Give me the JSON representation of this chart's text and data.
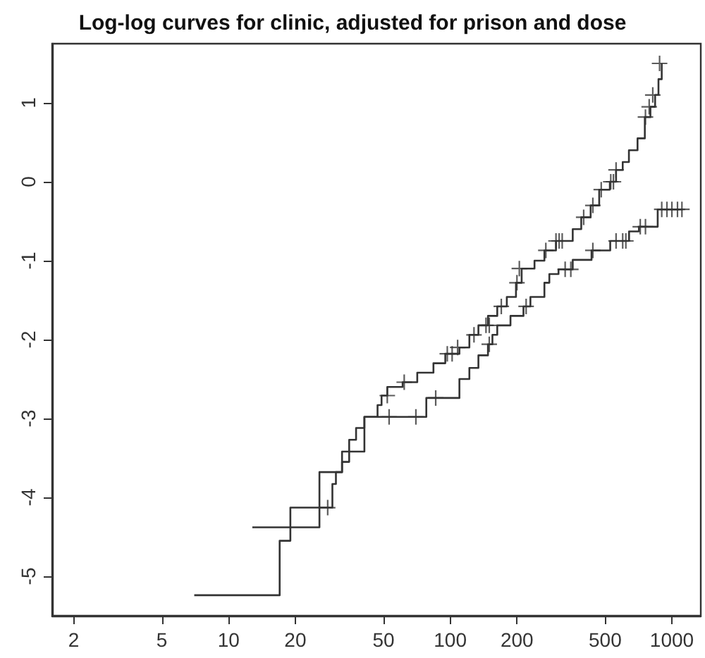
{
  "chart_data": {
    "type": "step",
    "title": "Log-log curves for clinic, adjusted for prison and dose",
    "log": "x",
    "xlim": [
      1.6,
      1350
    ],
    "xticks": [
      2,
      5,
      10,
      20,
      50,
      100,
      200,
      500,
      1000
    ],
    "ylim": [
      -5.5,
      1.75
    ],
    "yticks": [
      -5,
      -4,
      -3,
      -2,
      -1,
      0,
      1
    ],
    "series": [
      {
        "color": "#333333",
        "marker": "none",
        "x": [
          7,
          17,
          19,
          29.4,
          30.5,
          32.5,
          35,
          37.6,
          41,
          78,
          110,
          122,
          134,
          148,
          155,
          163,
          187,
          214,
          230,
          266,
          280,
          308,
          357,
          434,
          527,
          641,
          710,
          863,
          1120
        ],
        "values": [
          -5.24,
          -4.55,
          -4.13,
          -3.83,
          -3.68,
          -3.55,
          -3.27,
          -3.12,
          -2.98,
          -2.74,
          -2.5,
          -2.36,
          -2.2,
          -2.06,
          -1.94,
          -1.82,
          -1.7,
          -1.58,
          -1.46,
          -1.28,
          -1.17,
          -1.11,
          -0.99,
          -0.87,
          -0.75,
          -0.63,
          -0.57,
          -0.35,
          -0.35
        ]
      },
      {
        "color": "#333333",
        "marker": "none",
        "x": [
          12.8,
          25.7,
          32.5,
          41,
          47,
          49,
          52,
          61,
          71,
          84,
          95,
          110,
          122,
          134,
          148,
          163,
          180,
          198,
          210,
          240,
          266,
          300,
          357,
          390,
          430,
          470,
          525,
          560,
          600,
          640,
          700,
          755,
          800,
          840,
          870,
          900
        ],
        "values": [
          -4.38,
          -3.68,
          -3.42,
          -2.98,
          -2.83,
          -2.71,
          -2.6,
          -2.54,
          -2.42,
          -2.3,
          -2.18,
          -2.1,
          -1.94,
          -1.82,
          -1.7,
          -1.58,
          -1.46,
          -1.28,
          -1.1,
          -1.0,
          -0.87,
          -0.75,
          -0.6,
          -0.45,
          -0.3,
          -0.1,
          0.0,
          0.15,
          0.25,
          0.4,
          0.55,
          0.82,
          0.95,
          1.1,
          1.3,
          1.5
        ]
      },
      {
        "type": "scatter",
        "color": "#333333",
        "marker": "cross",
        "x": [
          28,
          53,
          70,
          86,
          150,
          220,
          330,
          350,
          440,
          560,
          600,
          620,
          720,
          760,
          900,
          950,
          1000,
          1060,
          1110
        ],
        "values": [
          -4.13,
          -2.98,
          -2.98,
          -2.74,
          -2.06,
          -1.58,
          -1.11,
          -1.11,
          -0.87,
          -0.75,
          -0.75,
          -0.75,
          -0.57,
          -0.57,
          -0.35,
          -0.35,
          -0.35,
          -0.35,
          -0.35
        ]
      },
      {
        "type": "scatter",
        "color": "#333333",
        "marker": "cross",
        "x": [
          52,
          62,
          97,
          102,
          108,
          128,
          145,
          150,
          170,
          200,
          205,
          270,
          300,
          310,
          320,
          400,
          440,
          480,
          530,
          545,
          560,
          760,
          790,
          820,
          880
        ],
        "values": [
          -2.71,
          -2.54,
          -2.18,
          -2.18,
          -2.1,
          -1.94,
          -1.82,
          -1.82,
          -1.58,
          -1.28,
          -1.1,
          -0.87,
          -0.75,
          -0.75,
          -0.75,
          -0.45,
          -0.3,
          -0.1,
          0.0,
          0.0,
          0.15,
          0.82,
          0.95,
          1.1,
          1.5
        ]
      }
    ]
  }
}
